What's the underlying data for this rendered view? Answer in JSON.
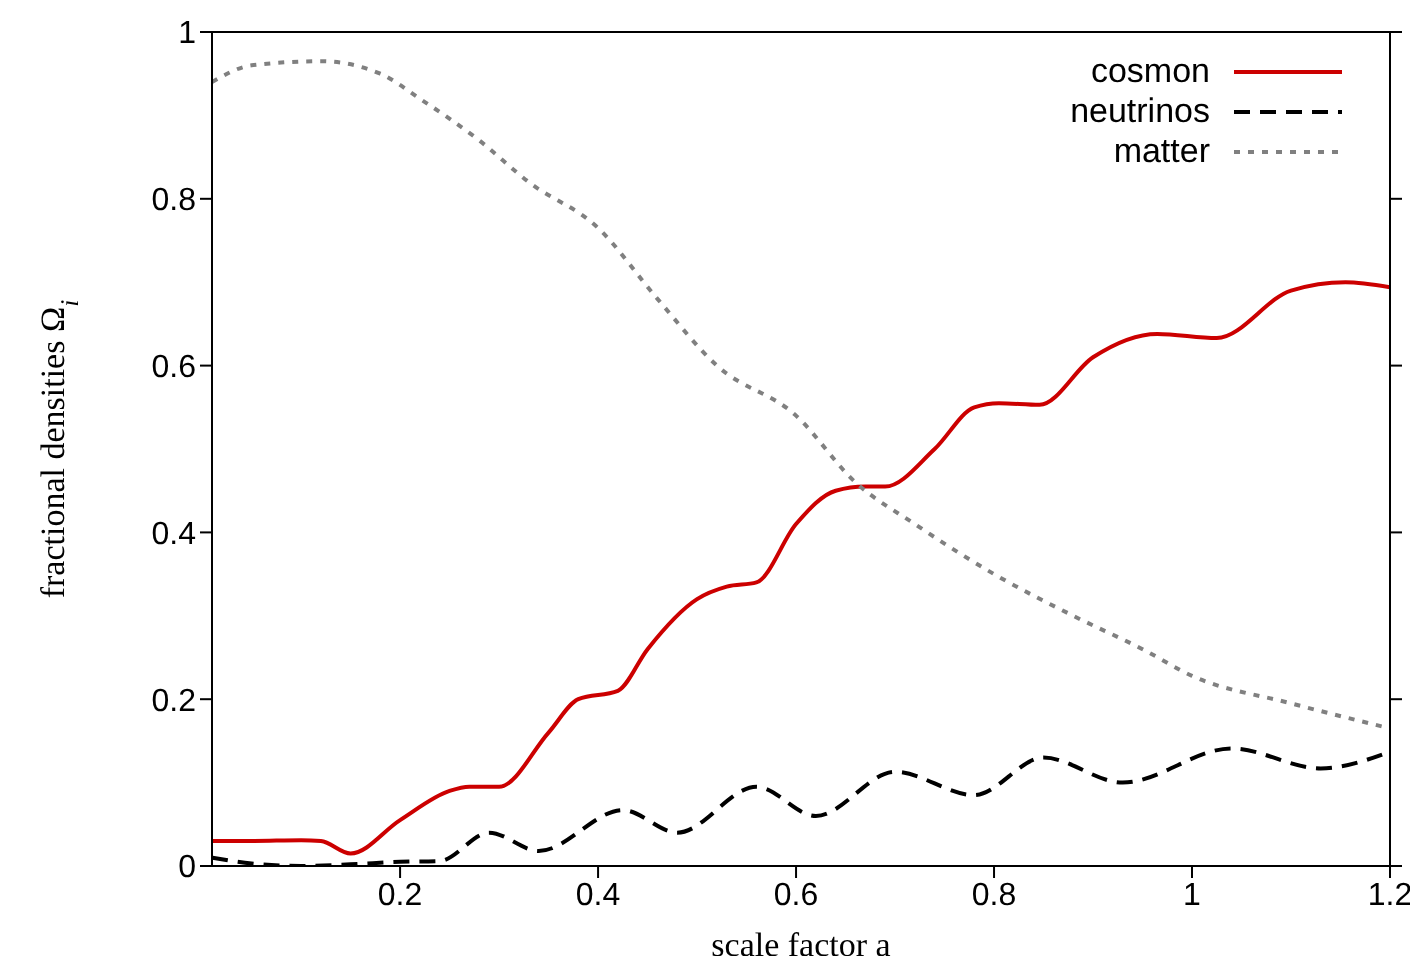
{
  "chart_data": {
    "type": "line",
    "xlabel": "scale factor a",
    "ylabel": "fractional densities Ω$_{i}$",
    "xlim": [
      0.01,
      1.2
    ],
    "ylim": [
      0,
      1
    ],
    "xticks": [
      0.2,
      0.4,
      0.6,
      0.8,
      1,
      1.2
    ],
    "yticks": [
      0,
      0.2,
      0.4,
      0.6,
      0.8,
      1
    ],
    "legend": "top right",
    "marker": "none",
    "series": [
      {
        "name": "cosmon",
        "color": "#cc0000",
        "line_style": "solid",
        "x": [
          0.01,
          0.05,
          0.1,
          0.12,
          0.15,
          0.2,
          0.25,
          0.27,
          0.3,
          0.35,
          0.38,
          0.42,
          0.45,
          0.5,
          0.53,
          0.56,
          0.6,
          0.64,
          0.67,
          0.69,
          0.74,
          0.78,
          0.805,
          0.846,
          0.9,
          0.965,
          1.025,
          1.1,
          1.155,
          1.2
        ],
        "values": [
          0.03,
          0.03,
          0.031,
          0.03,
          0.015,
          0.055,
          0.09,
          0.095,
          0.095,
          0.16,
          0.2,
          0.21,
          0.26,
          0.32,
          0.335,
          0.34,
          0.41,
          0.45,
          0.455,
          0.455,
          0.5,
          0.55,
          0.555,
          0.553,
          0.61,
          0.638,
          0.633,
          0.69,
          0.7,
          0.694
        ]
      },
      {
        "name": "neutrinos",
        "color": "#000000",
        "line_style": "dashed",
        "x": [
          0.01,
          0.05,
          0.1,
          0.15,
          0.2,
          0.24,
          0.29,
          0.34,
          0.425,
          0.48,
          0.56,
          0.62,
          0.7,
          0.78,
          0.85,
          0.93,
          1.04,
          1.13,
          1.2
        ],
        "values": [
          0.01,
          0.003,
          0.0,
          0.002,
          0.005,
          0.006,
          0.04,
          0.018,
          0.067,
          0.04,
          0.095,
          0.06,
          0.113,
          0.085,
          0.13,
          0.1,
          0.141,
          0.117,
          0.137
        ]
      },
      {
        "name": "matter",
        "color": "#808080",
        "line_style": "dotted",
        "x": [
          0.01,
          0.05,
          0.12,
          0.18,
          0.22,
          0.28,
          0.33,
          0.4,
          0.46,
          0.52,
          0.6,
          0.66,
          0.72,
          0.8,
          0.88,
          0.95,
          1.0,
          1.1,
          1.2
        ],
        "values": [
          0.94,
          0.96,
          0.965,
          0.95,
          0.92,
          0.87,
          0.82,
          0.765,
          0.68,
          0.6,
          0.54,
          0.46,
          0.41,
          0.35,
          0.3,
          0.26,
          0.228,
          0.195,
          0.165
        ]
      }
    ]
  }
}
